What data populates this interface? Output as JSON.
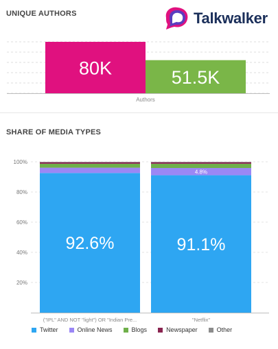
{
  "header": {
    "brand": "Talkwalker"
  },
  "authors_panel": {
    "title": "UNIQUE AUTHORS"
  },
  "media_panel": {
    "title": "SHARE OF MEDIA TYPES"
  },
  "colors": {
    "pink": "#e0117f",
    "green": "#7ab648",
    "twitter": "#2ea6f2",
    "online_news": "#9b87f5",
    "blogs": "#6fb04a",
    "newspaper": "#8a2450",
    "other": "#8c8c8c"
  },
  "chart_data": [
    {
      "type": "bar",
      "categories": [
        "Authors"
      ],
      "series": [
        {
          "values": [
            80000
          ],
          "label": "80K"
        },
        {
          "values": [
            51500
          ],
          "label": "51.5K"
        }
      ],
      "title": "UNIQUE AUTHORS",
      "ylim": [
        0,
        80000
      ],
      "grid": true
    },
    {
      "type": "bar",
      "stacked": true,
      "title": "SHARE OF MEDIA TYPES",
      "categories": [
        "(\"IPL\" AND NOT \"light\") OR \"Indian Pre...",
        "\"Netflix\""
      ],
      "yticks": [
        "20%",
        "40%",
        "60%",
        "80%",
        "100%"
      ],
      "ylim": [
        0,
        100
      ],
      "grid": true,
      "legend": "bottom",
      "series": [
        {
          "name": "Twitter",
          "values": [
            92.6,
            91.1
          ],
          "labels": [
            "92.6%",
            "91.1%"
          ]
        },
        {
          "name": "Online News",
          "values": [
            3.5,
            4.8
          ],
          "labels": [
            "",
            "4.8%"
          ]
        },
        {
          "name": "Blogs",
          "values": [
            2.6,
            2.8
          ]
        },
        {
          "name": "Newspaper",
          "values": [
            1.0,
            1.0
          ]
        },
        {
          "name": "Other",
          "values": [
            0.3,
            0.3
          ]
        }
      ]
    }
  ]
}
